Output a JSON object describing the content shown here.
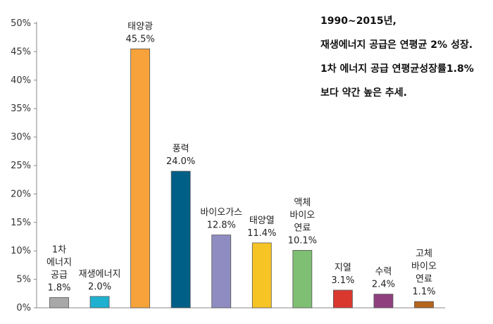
{
  "chart_data": {
    "type": "bar",
    "title": "",
    "xlabel": "",
    "ylabel": "",
    "ylim": [
      0,
      50
    ],
    "y_ticks": [
      "0%",
      "5%",
      "10%",
      "15%",
      "20%",
      "25%",
      "30%",
      "35%",
      "40%",
      "45%",
      "50%"
    ],
    "grid": false,
    "legend": "none",
    "bars": [
      {
        "label": [
          "1차",
          "에너지",
          "공급",
          "1.8%"
        ],
        "value": 1.8,
        "color": "#a8a8a8"
      },
      {
        "label": [
          "재생에너지",
          "2.0%"
        ],
        "value": 2.0,
        "color": "#1fb0cf"
      },
      {
        "label": [
          "태양광",
          "45.5%"
        ],
        "value": 45.5,
        "color": "#f7a23a"
      },
      {
        "label": [
          "풍력",
          "24.0%"
        ],
        "value": 24.0,
        "color": "#005f86"
      },
      {
        "label": [
          "바이오가스",
          "12.8%"
        ],
        "value": 12.8,
        "color": "#8e8cc0"
      },
      {
        "label": [
          "태양열",
          "11.4%"
        ],
        "value": 11.4,
        "color": "#f7c425"
      },
      {
        "label": [
          "액체",
          "바이오",
          "연료",
          "10.1%"
        ],
        "value": 10.1,
        "color": "#7fbf73"
      },
      {
        "label": [
          "지열",
          "3.1%"
        ],
        "value": 3.1,
        "color": "#d9382f"
      },
      {
        "label": [
          "수력",
          "2.4%"
        ],
        "value": 2.4,
        "color": "#8f3f7e"
      },
      {
        "label": [
          "고체",
          "바이오",
          "연료",
          "1.1%"
        ],
        "value": 1.1,
        "color": "#b5651d"
      }
    ],
    "annotations": [
      "1990~2015년,",
      "재생에너지 공급은 연평균 2% 성장.",
      "1차 에너지 공급 연평균성장률1.8%",
      "보다 약간 높은 추세."
    ]
  }
}
